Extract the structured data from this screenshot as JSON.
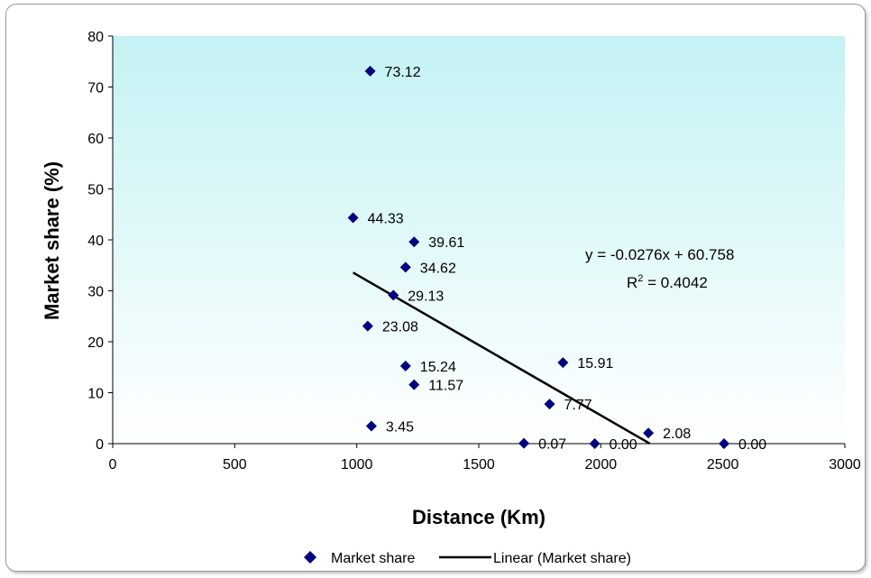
{
  "chart_data": {
    "type": "scatter",
    "xlabel": "Distance (Km)",
    "ylabel": "Market share (%)",
    "xlim": [
      0,
      3000
    ],
    "ylim": [
      0,
      80
    ],
    "xticks": [
      "0",
      "500",
      "1000",
      "1500",
      "2000",
      "2500",
      "3000"
    ],
    "yticks": [
      "0",
      "10",
      "20",
      "30",
      "40",
      "50",
      "60",
      "70",
      "80"
    ],
    "grid": false,
    "plot_background": "gradient white to light cyan",
    "series": [
      {
        "name": "Market share",
        "color": "#000080",
        "marker": "diamond",
        "points": [
          {
            "x": 1055,
            "y": 73.12,
            "label": "73.12"
          },
          {
            "x": 985,
            "y": 44.33,
            "label": "44.33"
          },
          {
            "x": 1235,
            "y": 39.61,
            "label": "39.61"
          },
          {
            "x": 1200,
            "y": 34.62,
            "label": "34.62"
          },
          {
            "x": 1150,
            "y": 29.13,
            "label": "29.13"
          },
          {
            "x": 1045,
            "y": 23.08,
            "label": "23.08"
          },
          {
            "x": 1200,
            "y": 15.24,
            "label": "15.24"
          },
          {
            "x": 1845,
            "y": 15.91,
            "label": "15.91"
          },
          {
            "x": 1235,
            "y": 11.57,
            "label": "11.57"
          },
          {
            "x": 1790,
            "y": 7.77,
            "label": "7.77"
          },
          {
            "x": 1060,
            "y": 3.45,
            "label": "3.45"
          },
          {
            "x": 2195,
            "y": 2.08,
            "label": "2.08"
          },
          {
            "x": 1685,
            "y": 0.07,
            "label": "0.07"
          },
          {
            "x": 1975,
            "y": 0.0,
            "label": "0.00"
          },
          {
            "x": 2505,
            "y": 0.0,
            "label": "0.00"
          }
        ]
      }
    ],
    "trendline": {
      "name": "Linear (Market share)",
      "type": "linear",
      "slope": -0.0276,
      "intercept": 60.758,
      "x_range": [
        985,
        2201
      ],
      "color": "#000000",
      "equation_text": "y = -0.0276x + 60.758",
      "r2_prefix": "R",
      "r2_sup": "2",
      "r2_value": " = 0.4042"
    },
    "legend": {
      "position": "bottom",
      "entries": [
        "Market share",
        "Linear (Market share)"
      ]
    }
  }
}
